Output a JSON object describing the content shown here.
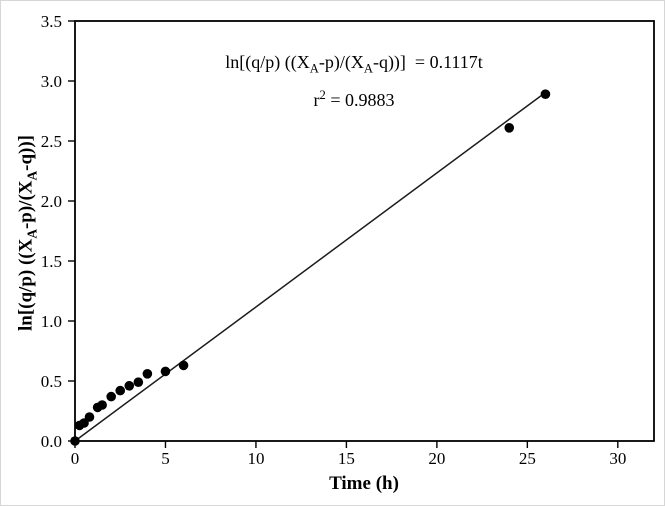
{
  "chart_data": {
    "type": "scatter",
    "title": "",
    "xlabel": "Time (h)",
    "ylabel": "ln[(q/p) ((X_A-p)/(X_A-q))]",
    "xlim": [
      0,
      32
    ],
    "ylim": [
      0,
      3.5
    ],
    "grid": false,
    "legend": false,
    "xticks": [
      0,
      5,
      10,
      15,
      20,
      25,
      30
    ],
    "xtick_labels": [
      "0",
      "5",
      "10",
      "15",
      "20",
      "25",
      "30"
    ],
    "yticks": [
      0,
      0.5,
      1,
      1.5,
      2,
      2.5,
      3,
      3.5
    ],
    "ytick_labels": [
      "0.0",
      "0.5",
      "1.0",
      "1.5",
      "2.0",
      "2.5",
      "3.0",
      "3.5"
    ],
    "points": [
      [
        0,
        0.0
      ],
      [
        0.25,
        0.13
      ],
      [
        0.5,
        0.15
      ],
      [
        0.8,
        0.2
      ],
      [
        1.25,
        0.28
      ],
      [
        1.5,
        0.3
      ],
      [
        2.0,
        0.37
      ],
      [
        2.5,
        0.42
      ],
      [
        3.0,
        0.46
      ],
      [
        3.5,
        0.49
      ],
      [
        4.0,
        0.56
      ],
      [
        5.0,
        0.58
      ],
      [
        6.0,
        0.63
      ],
      [
        24.0,
        2.61
      ],
      [
        26.0,
        2.89
      ]
    ],
    "fit_line": {
      "slope": 0.1117,
      "intercept": 0,
      "x_start": 0,
      "x_end": 26
    },
    "equation_text": "ln[(q/p) ((X_A-p)/(X_A-q))]  = 0.1117t",
    "r_squared_text": "r^2 = 0.9883",
    "marker": {
      "shape": "circle",
      "color": "#000000",
      "radius": 4.8
    },
    "fit_line_color": "#1c1c1c",
    "axis_color": "#000000"
  },
  "ylabel_parts": {
    "p1": "ln[(q/p) ((X",
    "s1": "A",
    "p2": "-p)/(X",
    "s2": "A",
    "p3": "-q))]"
  },
  "annotation": {
    "eq": {
      "p1": "ln[(q/p) ((X",
      "s1": "A",
      "p2": "-p)/(X",
      "s2": "A",
      "p3": "-q))]  = 0.1117t"
    },
    "r2": {
      "base": "r",
      "sup": "2",
      "rest": " = 0.9883"
    }
  }
}
